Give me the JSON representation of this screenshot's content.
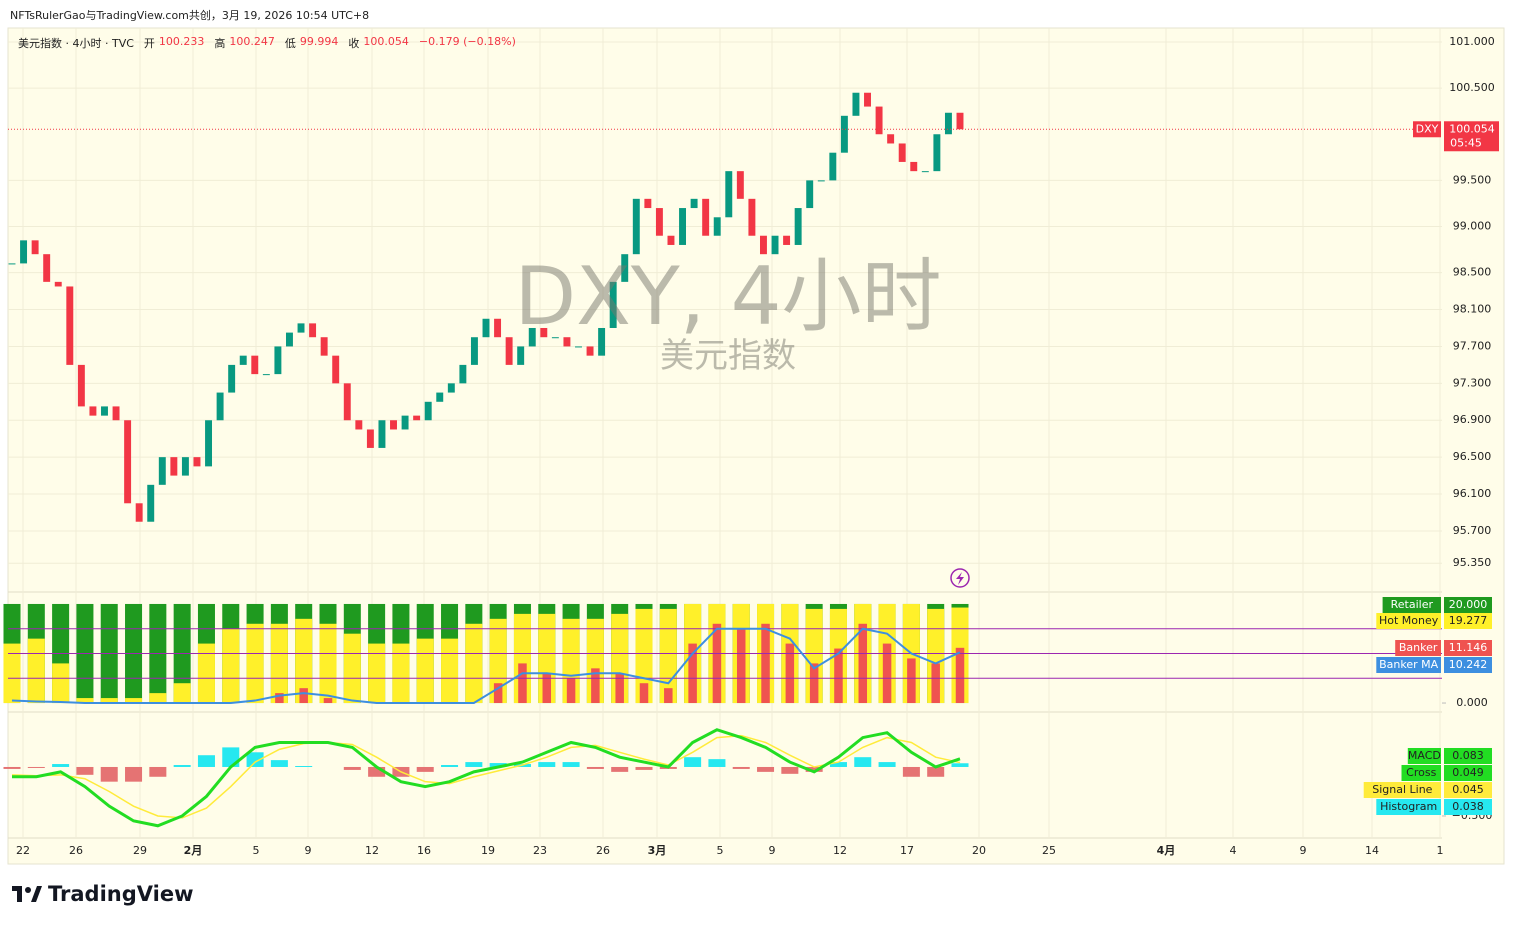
{
  "header": {
    "credit": "NFTsRulerGao与TradingView.com共创，3月 19, 2026 10:54 UTC+8",
    "symbol": "美元指数 · 4小时 · TVC",
    "ohlc": [
      {
        "label": "开",
        "value": 100.233
      },
      {
        "label": "高",
        "value": 100.247
      },
      {
        "label": "低",
        "value": 99.994
      },
      {
        "label": "收",
        "value": 100.054
      }
    ],
    "change": "−0.179 (−0.18%)"
  },
  "watermark": {
    "title": "DXY, 4小时",
    "subtitle": "美元指数"
  },
  "footer": {
    "brand": "TradingView"
  },
  "chart_data": [
    {
      "type": "candlestick",
      "symbol": "DXY",
      "up_color": "#089981",
      "down_color": "#f23645",
      "categories": [
        "22",
        "26",
        "29",
        "2月",
        "5",
        "9",
        "12",
        "16",
        "19",
        "23",
        "26",
        "3月",
        "5",
        "9",
        "12",
        "17",
        "20",
        "25",
        "4月",
        "4",
        "9",
        "14",
        "1"
      ],
      "close": [
        98.6,
        98.85,
        98.7,
        98.4,
        98.35,
        97.5,
        97.05,
        96.95,
        97.05,
        96.9,
        96.0,
        95.8,
        96.2,
        96.5,
        96.3,
        96.5,
        96.4,
        96.9,
        97.2,
        97.5,
        97.6,
        97.4,
        97.4,
        97.7,
        97.85,
        97.95,
        97.8,
        97.6,
        97.3,
        96.9,
        96.8,
        96.6,
        96.9,
        96.8,
        96.95,
        96.9,
        97.1,
        97.2,
        97.3,
        97.5,
        97.8,
        98.0,
        97.8,
        97.5,
        97.7,
        97.9,
        97.8,
        97.8,
        97.7,
        97.7,
        97.6,
        97.9,
        98.4,
        98.7,
        99.3,
        99.2,
        98.9,
        98.8,
        99.2,
        99.3,
        98.9,
        99.1,
        99.6,
        99.3,
        98.9,
        98.7,
        98.9,
        98.8,
        99.2,
        99.5,
        99.5,
        99.8,
        100.2,
        100.45,
        100.3,
        100.0,
        99.9,
        99.7,
        99.6,
        99.6,
        100.0,
        100.233,
        100.054
      ],
      "last_price": 100.054,
      "countdown": "05:45",
      "ylim": [
        95.06,
        101.13
      ],
      "yticks": [
        {
          "value": 95.35,
          "label": "95.350"
        },
        {
          "value": 95.7,
          "label": "95.700"
        },
        {
          "value": 96.1,
          "label": "96.100"
        },
        {
          "value": 96.5,
          "label": "96.500"
        },
        {
          "value": 96.9,
          "label": "96.900"
        },
        {
          "value": 97.3,
          "label": "97.300"
        },
        {
          "value": 97.7,
          "label": "97.700"
        },
        {
          "value": 98.1,
          "label": "98.100"
        },
        {
          "value": 98.5,
          "label": "98.500"
        },
        {
          "value": 99,
          "label": "99.000"
        },
        {
          "value": 99.5,
          "label": "99.500"
        },
        {
          "value": 100.5,
          "label": "100.500"
        },
        {
          "value": 101,
          "label": "101.000"
        }
      ],
      "grid": true
    },
    {
      "type": "banker",
      "ylim": [
        -0.6,
        20.8
      ],
      "yticks": [
        {
          "value": 0,
          "label": "0.000"
        }
      ],
      "levels": [
        5,
        10,
        15
      ],
      "series": [
        {
          "name": "Retailer",
          "color": "#1f9a1f",
          "last": {
            "value": 20,
            "label": "20.000"
          }
        },
        {
          "name": "Hot Money",
          "color": "#fff02a",
          "last": {
            "value": 19.277,
            "label": "19.277"
          },
          "values": [
            12,
            13,
            8,
            1,
            1,
            1,
            2,
            4,
            12,
            15,
            16,
            16,
            17,
            16,
            14,
            12,
            12,
            13,
            13,
            16,
            17,
            18,
            18,
            17,
            17,
            18,
            19,
            19,
            20,
            20,
            20,
            20,
            20,
            19,
            19,
            20,
            20,
            20,
            19,
            19.277
          ]
        },
        {
          "name": "Banker",
          "color": "#ef5350",
          "last": {
            "value": 11.146,
            "label": "11.146"
          },
          "values": [
            0,
            0,
            0,
            0,
            0,
            0,
            0,
            0,
            0,
            0,
            0,
            2,
            3,
            1,
            0,
            0,
            0,
            0,
            0,
            0,
            4,
            8,
            6,
            5,
            7,
            6,
            4,
            3,
            12,
            16,
            15,
            16,
            12,
            8,
            11,
            16,
            12,
            9,
            8,
            11.146
          ]
        },
        {
          "name": "Banker MA",
          "color": "#3d8fe0",
          "last": {
            "value": 10.242,
            "label": "10.242"
          },
          "values": [
            0.5,
            0.3,
            0.2,
            0,
            0,
            0,
            0,
            0,
            0,
            0,
            0.5,
            1.5,
            2,
            1.5,
            0.5,
            0,
            0,
            0,
            0,
            0,
            3,
            6,
            6,
            5.5,
            6,
            6,
            5,
            4,
            10,
            15,
            15,
            15,
            13,
            7,
            10,
            15,
            14,
            10,
            8,
            10.242
          ]
        }
      ]
    },
    {
      "type": "macd",
      "ylim": [
        -0.725,
        0.5
      ],
      "yticks": [
        {
          "value": -0.5,
          "label": "−0.500"
        }
      ],
      "series": [
        {
          "name": "MACD",
          "color": "#22dd22",
          "last": {
            "value": 0.083,
            "label": "0.083"
          },
          "values": [
            -0.1,
            -0.1,
            -0.05,
            -0.2,
            -0.4,
            -0.55,
            -0.6,
            -0.5,
            -0.3,
            0,
            0.2,
            0.25,
            0.25,
            0.25,
            0.2,
            0,
            -0.15,
            -0.2,
            -0.15,
            -0.05,
            0,
            0.05,
            0.15,
            0.25,
            0.2,
            0.1,
            0.05,
            0,
            0.25,
            0.38,
            0.3,
            0.2,
            0.05,
            -0.05,
            0.1,
            0.3,
            0.35,
            0.15,
            0,
            0.083
          ]
        },
        {
          "name": "Cross",
          "color": "#22dd22",
          "last": {
            "value": 0.049,
            "label": "0.049"
          }
        },
        {
          "name": "Signal Line",
          "color": "#ffeb3b",
          "last": {
            "value": 0.045,
            "label": "0.045"
          },
          "values": [
            -0.08,
            -0.09,
            -0.08,
            -0.12,
            -0.25,
            -0.4,
            -0.5,
            -0.52,
            -0.42,
            -0.2,
            0.05,
            0.18,
            0.24,
            0.25,
            0.23,
            0.1,
            -0.05,
            -0.15,
            -0.17,
            -0.1,
            -0.04,
            0.02,
            0.1,
            0.2,
            0.22,
            0.15,
            0.08,
            0.02,
            0.15,
            0.3,
            0.32,
            0.25,
            0.12,
            0,
            0.05,
            0.2,
            0.3,
            0.25,
            0.1,
            0.045
          ]
        },
        {
          "name": "Histogram",
          "color": "#26e8f0",
          "last": {
            "value": 0.038,
            "label": "0.038"
          },
          "values": [
            -0.02,
            -0.01,
            0.03,
            -0.08,
            -0.15,
            -0.15,
            -0.1,
            0.02,
            0.12,
            0.2,
            0.15,
            0.07,
            0.01,
            0,
            -0.03,
            -0.1,
            -0.1,
            -0.05,
            0.02,
            0.05,
            0.04,
            0.03,
            0.05,
            0.05,
            -0.02,
            -0.05,
            -0.03,
            -0.02,
            0.1,
            0.08,
            -0.02,
            -0.05,
            -0.07,
            -0.05,
            0.05,
            0.1,
            0.05,
            -0.1,
            -0.1,
            0.038
          ]
        }
      ]
    }
  ]
}
